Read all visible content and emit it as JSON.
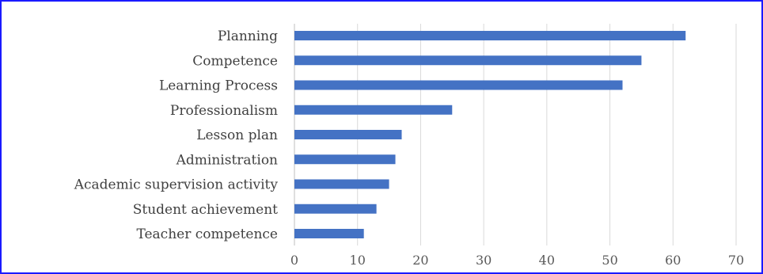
{
  "chart_data": {
    "type": "bar",
    "orientation": "horizontal",
    "categories": [
      "Planning",
      "Competence",
      "Learning Process",
      "Professionalism",
      "Lesson plan",
      "Administration",
      "Academic supervision activity",
      "Student achievement",
      "Teacher competence"
    ],
    "values": [
      62,
      55,
      52,
      25,
      17,
      16,
      15,
      13,
      11
    ],
    "xlim": [
      0,
      70
    ],
    "xticks": [
      0,
      10,
      20,
      30,
      40,
      50,
      60,
      70
    ],
    "title": "",
    "xlabel": "",
    "ylabel": "",
    "grid": "vertical",
    "bar_color": "#4472c4",
    "border_color": "#1a1aff"
  }
}
